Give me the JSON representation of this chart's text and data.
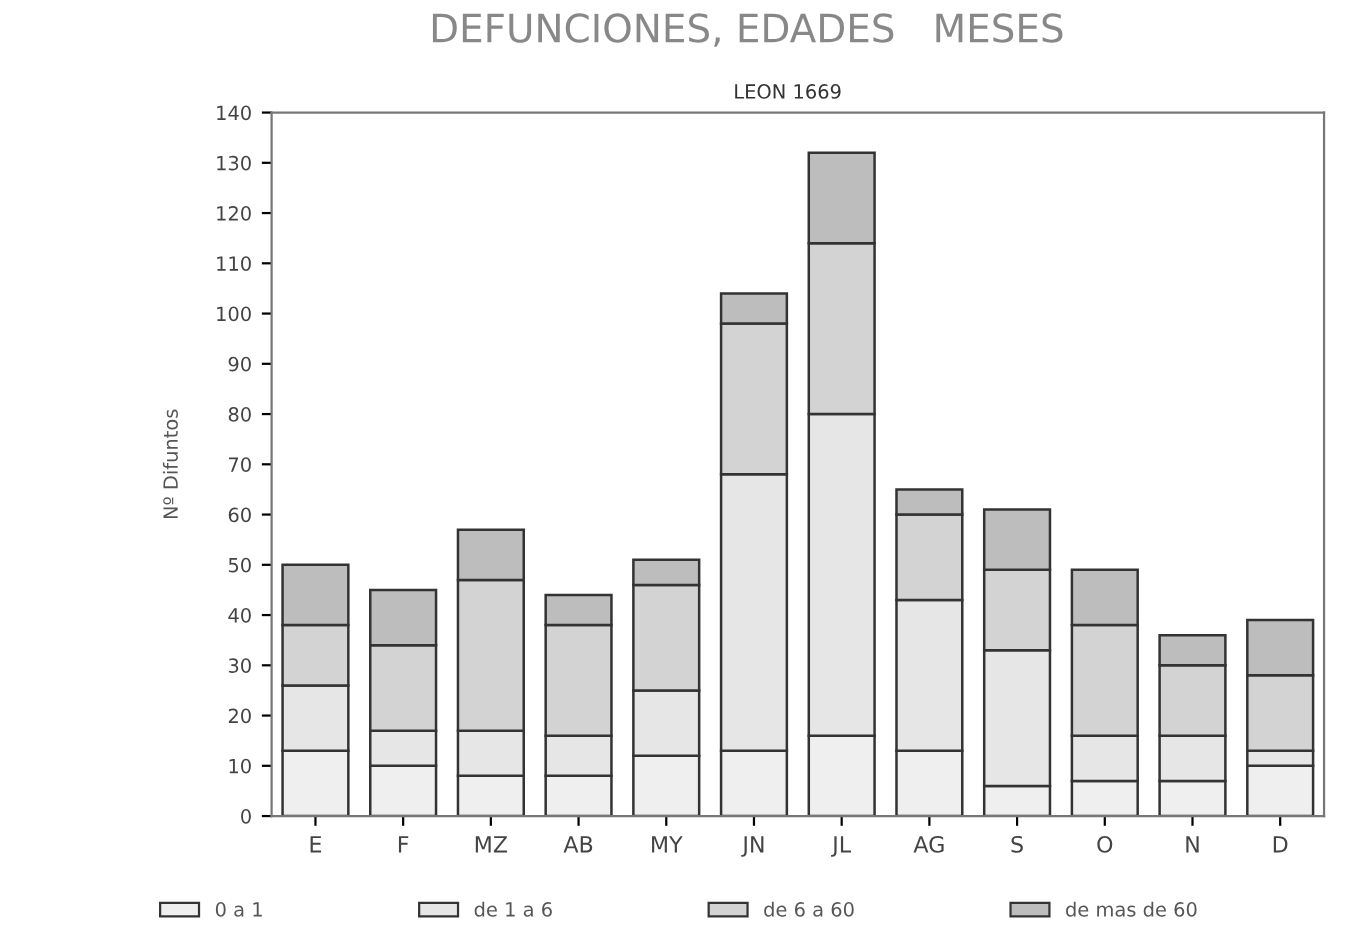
{
  "chart_data": {
    "type": "bar",
    "title": "DEFUNCIONES, EDADES   MESES",
    "subtitle": "LEON 1669",
    "ylabel": "Nº Difuntos",
    "categories": [
      "E",
      "F",
      "MZ",
      "AB",
      "MY",
      "JN",
      "JL",
      "AG",
      "S",
      "O",
      "N",
      "D"
    ],
    "stacked": true,
    "series": [
      {
        "name": "0 a 1",
        "color": "#efefef",
        "values": [
          13,
          10,
          8,
          8,
          12,
          13,
          16,
          13,
          6,
          7,
          7,
          10
        ]
      },
      {
        "name": "de 1 a 6",
        "color": "#e6e6e6",
        "values": [
          13,
          7,
          9,
          8,
          13,
          55,
          64,
          30,
          27,
          9,
          9,
          3
        ]
      },
      {
        "name": "de 6 a 60",
        "color": "#d3d3d3",
        "values": [
          12,
          17,
          30,
          22,
          21,
          30,
          34,
          17,
          16,
          22,
          14,
          15
        ]
      },
      {
        "name": "de mas de 60",
        "color": "#bdbdbd",
        "values": [
          12,
          11,
          10,
          6,
          5,
          6,
          18,
          5,
          12,
          11,
          6,
          11
        ]
      }
    ],
    "ylim": [
      0,
      140
    ],
    "yticks": [
      0,
      10,
      20,
      30,
      40,
      50,
      60,
      70,
      80,
      90,
      100,
      110,
      120,
      130,
      140
    ],
    "grid": false,
    "legend": "bottom"
  }
}
